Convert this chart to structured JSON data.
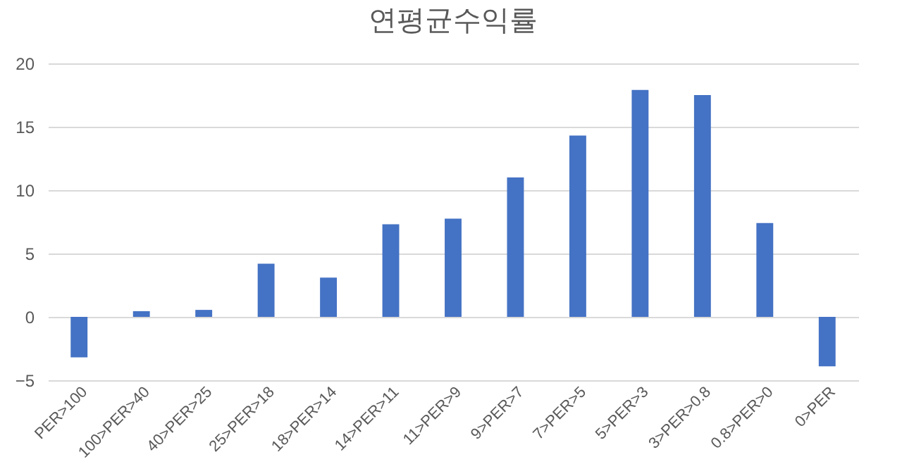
{
  "chart_data": {
    "type": "bar",
    "title": "연평균수익률",
    "categories": [
      "PER>100",
      "100>PER>40",
      "40>PER>25",
      "25>PER>18",
      "18>PER>14",
      "14>PER>11",
      "11>PER>9",
      "9>PER>7",
      "7>PER>5",
      "5>PER>3",
      "3>PER>0.8",
      "0.8>PER>0",
      "0>PER"
    ],
    "values": [
      -3.2,
      0.45,
      0.55,
      4.2,
      3.1,
      7.3,
      7.75,
      11.0,
      14.3,
      17.9,
      17.5,
      7.4,
      -3.9
    ],
    "color": "#4472c4",
    "ylim": [
      -5,
      20
    ],
    "yticks": [
      -5,
      0,
      5,
      10,
      15,
      20
    ],
    "grid": "y"
  }
}
